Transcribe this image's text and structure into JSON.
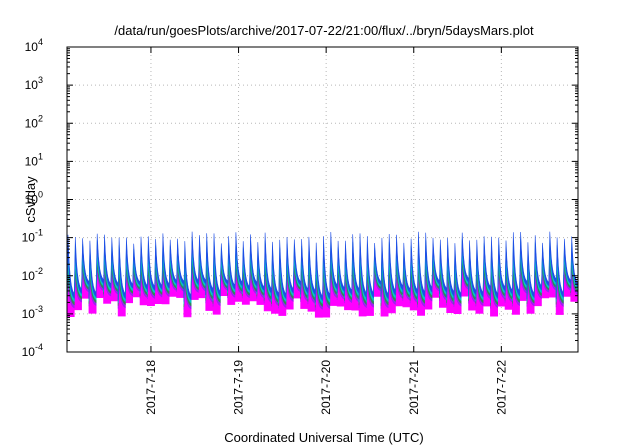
{
  "chart_data": {
    "type": "area",
    "title": "/data/run/goesPlots/archive/2017-07-22/21:00/flux/../bryn/5daysMars.plot",
    "xlabel": "Coordinated Universal Time (UTC)",
    "ylabel": "cSv/day",
    "yscale": "log",
    "ylim": [
      0.0001,
      10000
    ],
    "y_ticks": [
      {
        "base": "10",
        "exp": "-4"
      },
      {
        "base": "10",
        "exp": "-3"
      },
      {
        "base": "10",
        "exp": "-2"
      },
      {
        "base": "10",
        "exp": "-1"
      },
      {
        "base": "10",
        "exp": "0"
      },
      {
        "base": "10",
        "exp": "1"
      },
      {
        "base": "10",
        "exp": "2"
      },
      {
        "base": "10",
        "exp": "3"
      },
      {
        "base": "10",
        "exp": "4"
      }
    ],
    "xlim": [
      "2017-07-17T01:00",
      "2017-07-22T21:00"
    ],
    "x_ticks": [
      "2017-7-18",
      "2017-7-19",
      "2017-7-20",
      "2017-7-21",
      "2017-7-22"
    ],
    "grid": true,
    "pattern": {
      "cycles_per_day": 12,
      "envelope_peak_max": 0.15,
      "envelope_peak_min": 0.07,
      "envelope_trough_min": 0.0008,
      "envelope_trough_max": 0.003
    },
    "series": [
      {
        "color": "#ff00ff"
      },
      {
        "color": "#a020f0"
      },
      {
        "color": "#2e8b57"
      },
      {
        "color": "#00c8c8"
      },
      {
        "color": "#1e4fe6"
      }
    ]
  }
}
